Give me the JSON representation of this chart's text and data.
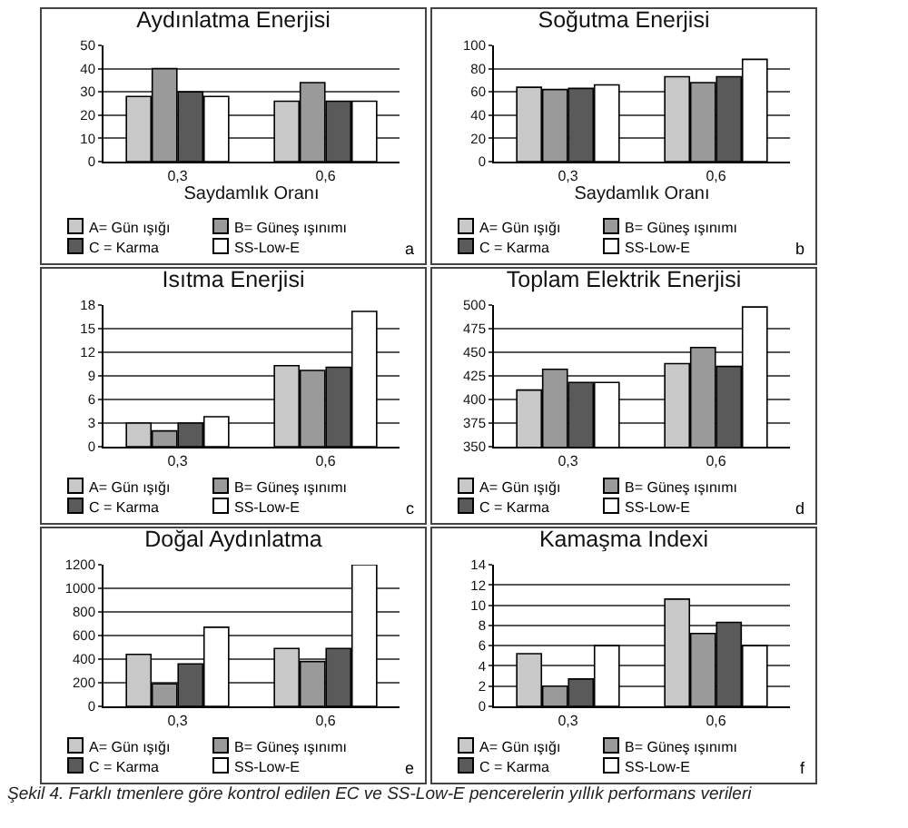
{
  "chart_data": [
    {
      "type": "bar",
      "title": "Aydınlatma Enerjisi",
      "xlabel": "Saydamlık Oranı",
      "categories": [
        "0,3",
        "0,6"
      ],
      "series": [
        {
          "name": "A= Gün ışığı",
          "color": "#c8c8c8",
          "values": [
            28,
            26
          ]
        },
        {
          "name": "B= Güneş ışınımı",
          "color": "#9a9a9a",
          "values": [
            40,
            34
          ]
        },
        {
          "name": "C = Karma",
          "color": "#5a5a5a",
          "values": [
            30,
            26
          ]
        },
        {
          "name": "SS-Low-E",
          "color": "#ffffff",
          "values": [
            28,
            26
          ]
        }
      ],
      "ylim": [
        0,
        50
      ],
      "yticks": [
        0,
        10,
        20,
        30,
        40,
        50
      ],
      "grid": "y",
      "legend": "bottom",
      "annotations": [
        "a"
      ]
    },
    {
      "type": "bar",
      "title": "Soğutma Enerjisi",
      "xlabel": "Saydamlık Oranı",
      "categories": [
        "0,3",
        "0,6"
      ],
      "series": [
        {
          "name": "A= Gün ışığı",
          "color": "#c8c8c8",
          "values": [
            64,
            73
          ]
        },
        {
          "name": "B= Güneş ışınımı",
          "color": "#9a9a9a",
          "values": [
            62,
            68
          ]
        },
        {
          "name": "C = Karma",
          "color": "#5a5a5a",
          "values": [
            63,
            73
          ]
        },
        {
          "name": "SS-Low-E",
          "color": "#ffffff",
          "values": [
            66,
            88
          ]
        }
      ],
      "ylim": [
        0,
        100
      ],
      "yticks": [
        0,
        20,
        40,
        60,
        80,
        100
      ],
      "grid": "y",
      "legend": "bottom",
      "annotations": [
        "b"
      ]
    },
    {
      "type": "bar",
      "title": "Isıtma Enerjisi",
      "categories": [
        "0,3",
        "0,6"
      ],
      "series": [
        {
          "name": "A= Gün ışığı",
          "color": "#c8c8c8",
          "values": [
            3,
            10.3
          ]
        },
        {
          "name": "B= Güneş ışınımı",
          "color": "#9a9a9a",
          "values": [
            2,
            9.7
          ]
        },
        {
          "name": "C = Karma",
          "color": "#5a5a5a",
          "values": [
            3,
            10.1
          ]
        },
        {
          "name": "SS-Low-E",
          "color": "#ffffff",
          "values": [
            3.8,
            17.2
          ]
        }
      ],
      "ylim": [
        0,
        18
      ],
      "yticks": [
        0,
        3,
        6,
        9,
        12,
        15,
        18
      ],
      "grid": "y",
      "legend": "bottom",
      "annotations": [
        "c"
      ]
    },
    {
      "type": "bar",
      "title": "Toplam Elektrik Enerjisi",
      "categories": [
        "0,3",
        "0,6"
      ],
      "series": [
        {
          "name": "A= Gün ışığı",
          "color": "#c8c8c8",
          "values": [
            410,
            438
          ]
        },
        {
          "name": "B= Güneş ışınımı",
          "color": "#9a9a9a",
          "values": [
            432,
            455
          ]
        },
        {
          "name": "C = Karma",
          "color": "#5a5a5a",
          "values": [
            418,
            435
          ]
        },
        {
          "name": "SS-Low-E",
          "color": "#ffffff",
          "values": [
            418,
            498
          ]
        }
      ],
      "ylim": [
        350,
        500
      ],
      "yticks": [
        350,
        375,
        400,
        425,
        450,
        475,
        500
      ],
      "grid": "y",
      "legend": "bottom",
      "annotations": [
        "d"
      ]
    },
    {
      "type": "bar",
      "title": "Doğal Aydınlatma",
      "categories": [
        "0,3",
        "0,6"
      ],
      "series": [
        {
          "name": "A= Gün ışığı",
          "color": "#c8c8c8",
          "values": [
            440,
            490
          ]
        },
        {
          "name": "B= Güneş ışınımı",
          "color": "#9a9a9a",
          "values": [
            190,
            380
          ]
        },
        {
          "name": "C = Karma",
          "color": "#5a5a5a",
          "values": [
            360,
            490
          ]
        },
        {
          "name": "SS-Low-E",
          "color": "#ffffff",
          "values": [
            670,
            1200
          ]
        }
      ],
      "ylim": [
        0,
        1200
      ],
      "yticks": [
        0,
        200,
        400,
        600,
        800,
        1000,
        1200
      ],
      "grid": "y",
      "legend": "bottom",
      "annotations": [
        "e"
      ]
    },
    {
      "type": "bar",
      "title": "Kamaşma Indexi",
      "categories": [
        "0,3",
        "0,6"
      ],
      "series": [
        {
          "name": "A= Gün ışığı",
          "color": "#c8c8c8",
          "values": [
            5.2,
            10.6
          ]
        },
        {
          "name": "B= Güneş ışınımı",
          "color": "#9a9a9a",
          "values": [
            2,
            7.2
          ]
        },
        {
          "name": "C = Karma",
          "color": "#5a5a5a",
          "values": [
            2.7,
            8.3
          ]
        },
        {
          "name": "SS-Low-E",
          "color": "#ffffff",
          "values": [
            6,
            6
          ]
        }
      ],
      "ylim": [
        0,
        14
      ],
      "yticks": [
        0,
        2,
        4,
        6,
        8,
        10,
        12,
        14
      ],
      "grid": "y",
      "legend": "bottom",
      "annotations": [
        "f",
        "Şekil 4. Farklı tmenlere göre kontrol edilen EC ve SS-Low-E pencerelerin yıllık performans verileri"
      ]
    }
  ]
}
